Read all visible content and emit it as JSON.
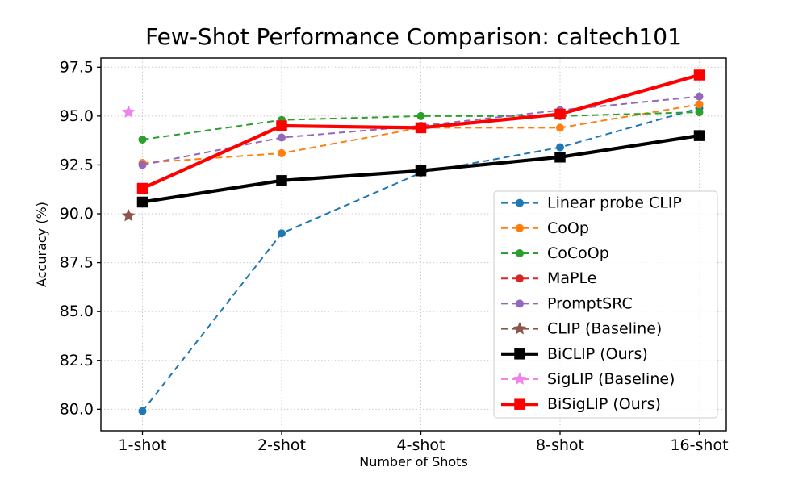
{
  "chart_data": {
    "type": "line",
    "title": "Few-Shot Performance Comparison: caltech101",
    "xlabel": "Number of Shots",
    "ylabel": "Accuracy (%)",
    "categories": [
      "1-shot",
      "2-shot",
      "4-shot",
      "8-shot",
      "16-shot"
    ],
    "x_values_shots": [
      1,
      2,
      4,
      8,
      16
    ],
    "yticks": [
      "80.0",
      "82.5",
      "85.0",
      "87.5",
      "90.0",
      "92.5",
      "95.0",
      "97.5"
    ],
    "ytick_values": [
      80.0,
      82.5,
      85.0,
      87.5,
      90.0,
      92.5,
      95.0,
      97.5
    ],
    "ylim": [
      78.9,
      98.0
    ],
    "grid": "dotted, both axes",
    "legend_position": "inside right",
    "series": [
      {
        "name": "Linear probe CLIP",
        "color": "#1f77b4",
        "line": "dashed",
        "marker": "circle",
        "values": [
          79.9,
          89.0,
          92.1,
          93.4,
          95.4
        ]
      },
      {
        "name": "CoOp",
        "color": "#ff7f0e",
        "line": "dashed",
        "marker": "circle",
        "values": [
          92.6,
          93.1,
          94.4,
          94.4,
          95.6
        ]
      },
      {
        "name": "CoCoOp",
        "color": "#2ca02c",
        "line": "dashed",
        "marker": "circle",
        "values": [
          93.8,
          94.8,
          95.0,
          95.0,
          95.2
        ]
      },
      {
        "name": "MaPLe",
        "color": "#d62728",
        "line": "dashed",
        "marker": "circle",
        "values": [
          91.3,
          94.5,
          94.4,
          95.1,
          97.1
        ],
        "note": "curve coincides with BiSigLIP (Ours) and is hidden beneath it"
      },
      {
        "name": "PromptSRC",
        "color": "#9467bd",
        "line": "dashed",
        "marker": "circle",
        "values": [
          92.5,
          93.9,
          94.5,
          95.3,
          96.0
        ]
      },
      {
        "name": "CLIP (Baseline)",
        "color": "#8c564b",
        "line": "dashed",
        "marker": "star",
        "values": [
          89.9,
          null,
          null,
          null,
          null
        ],
        "x_offset_units": -0.1,
        "note": "single point plotted just left of 1-shot"
      },
      {
        "name": "BiCLIP (Ours)",
        "color": "#000000",
        "line": "solid-thick",
        "marker": "square",
        "values": [
          90.6,
          91.7,
          92.2,
          92.9,
          94.0
        ]
      },
      {
        "name": "SigLIP (Baseline)",
        "color": "#ee82ee",
        "line": "dashed",
        "marker": "star",
        "values": [
          95.2,
          null,
          null,
          null,
          null
        ],
        "x_offset_units": -0.1,
        "note": "single point plotted just left of 1-shot"
      },
      {
        "name": "BiSigLIP (Ours)",
        "color": "#ff0000",
        "line": "solid-thick",
        "marker": "square",
        "values": [
          91.3,
          94.5,
          94.4,
          95.1,
          97.1
        ]
      }
    ]
  }
}
